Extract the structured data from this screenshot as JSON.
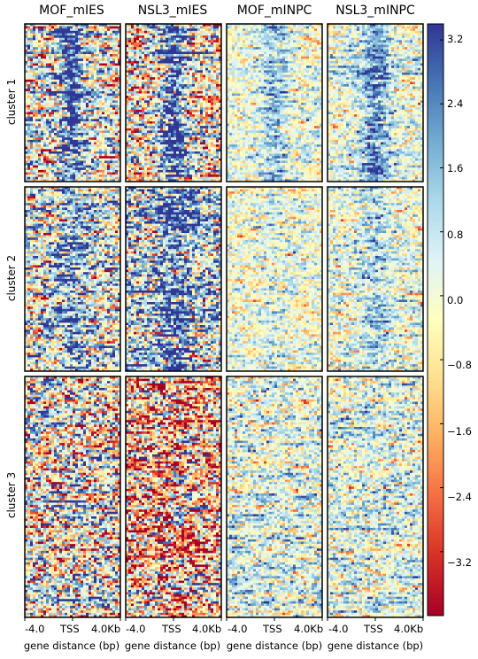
{
  "chart_data": {
    "type": "heatmap",
    "columns": [
      "MOF_mIES",
      "NSL3_mIES",
      "MOF_mINPC",
      "NSL3_mINPC"
    ],
    "rows": [
      "cluster 1",
      "cluster 2",
      "cluster 3"
    ],
    "xticks": [
      "-4.0",
      "TSS",
      "4.0Kb"
    ],
    "xlabel": "gene distance (bp)",
    "colorbar": {
      "colormap": "RdYlBu",
      "vmin": -4.0,
      "vmax": 3.4,
      "ticks": [
        {
          "value": 3.2,
          "label": "3.2"
        },
        {
          "value": 2.4,
          "label": "2.4"
        },
        {
          "value": 1.6,
          "label": "1.6"
        },
        {
          "value": 0.8,
          "label": "0.8"
        },
        {
          "value": 0.0,
          "label": "0.0"
        },
        {
          "value": -0.8,
          "label": "−0.8"
        },
        {
          "value": -1.6,
          "label": "−1.6"
        },
        {
          "value": -2.4,
          "label": "−2.4"
        },
        {
          "value": -3.2,
          "label": "−3.2"
        }
      ]
    },
    "panels": [
      {
        "column": "MOF_mIES",
        "cluster": "cluster 1",
        "mean": 0.1,
        "tss_signal": 2.6,
        "noise": 1.7
      },
      {
        "column": "NSL3_mIES",
        "cluster": "cluster 1",
        "mean": -0.6,
        "tss_signal": 3.6,
        "noise": 1.8
      },
      {
        "column": "MOF_mINPC",
        "cluster": "cluster 1",
        "mean": 0.0,
        "tss_signal": 1.5,
        "noise": 0.8
      },
      {
        "column": "NSL3_mINPC",
        "cluster": "cluster 1",
        "mean": 0.2,
        "tss_signal": 2.0,
        "noise": 0.9
      },
      {
        "column": "MOF_mIES",
        "cluster": "cluster 2",
        "mean": 0.4,
        "tss_signal": 1.4,
        "noise": 1.6
      },
      {
        "column": "NSL3_mIES",
        "cluster": "cluster 2",
        "mean": 0.9,
        "tss_signal": 1.6,
        "noise": 1.8
      },
      {
        "column": "MOF_mINPC",
        "cluster": "cluster 2",
        "mean": -0.1,
        "tss_signal": 0.6,
        "noise": 0.8
      },
      {
        "column": "NSL3_mINPC",
        "cluster": "cluster 2",
        "mean": 0.1,
        "tss_signal": 1.0,
        "noise": 0.9
      },
      {
        "column": "MOF_mIES",
        "cluster": "cluster 3",
        "mean": 0.0,
        "tss_signal": 0.0,
        "noise": 1.9
      },
      {
        "column": "NSL3_mIES",
        "cluster": "cluster 3",
        "mean": -1.2,
        "tss_signal": 0.0,
        "noise": 2.1
      },
      {
        "column": "MOF_mINPC",
        "cluster": "cluster 3",
        "mean": 0.3,
        "tss_signal": 0.0,
        "noise": 1.0
      },
      {
        "column": "NSL3_mINPC",
        "cluster": "cluster 3",
        "mean": 0.4,
        "tss_signal": 0.0,
        "noise": 1.0
      }
    ]
  }
}
